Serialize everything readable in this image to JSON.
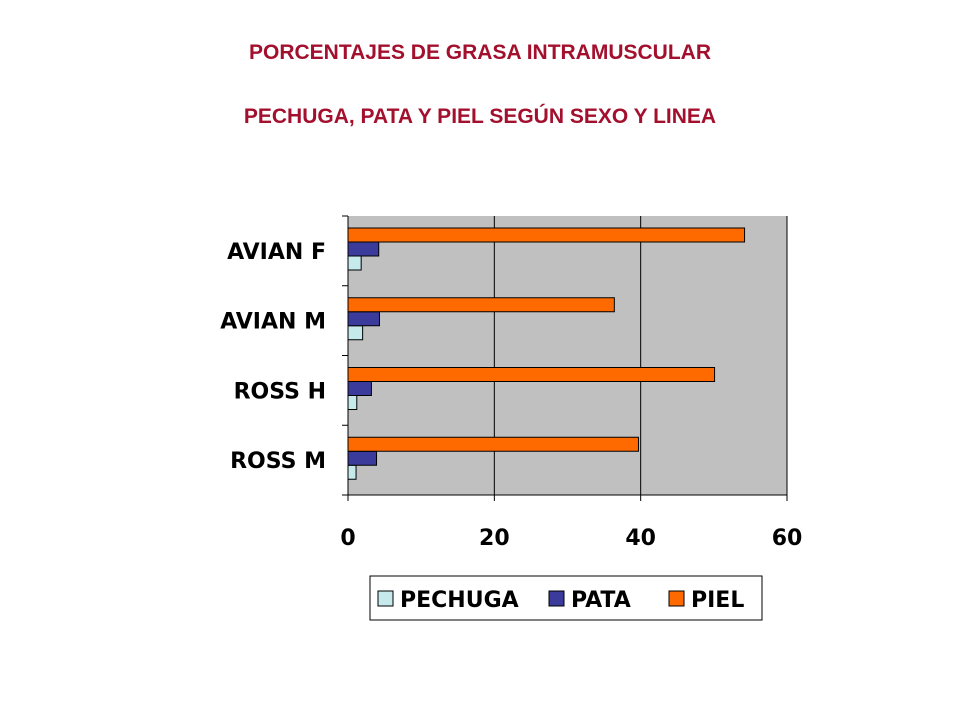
{
  "chart_data": {
    "type": "bar",
    "orientation": "horizontal",
    "title": "PORCENTAJES DE GRASA INTRAMUSCULAR",
    "subtitle": "PECHUGA, PATA Y PIEL SEGÚN SEXO Y LINEA",
    "categories": [
      "AVIAN F",
      "AVIAN M",
      "ROSS H",
      "ROSS M"
    ],
    "series": [
      {
        "name": "PECHUGA",
        "color": "#c6e9ec",
        "values": [
          1.8,
          2.0,
          1.2,
          1.1
        ]
      },
      {
        "name": "PATA",
        "color": "#3b3b9b",
        "values": [
          4.2,
          4.3,
          3.2,
          3.9
        ]
      },
      {
        "name": "PIEL",
        "color": "#ff6a00",
        "values": [
          54.2,
          36.4,
          50.1,
          39.7
        ]
      }
    ],
    "xlim": [
      0,
      60
    ],
    "xticks": [
      "0",
      "20",
      "40",
      "60"
    ],
    "grid": true,
    "plot_background": "#c0c0c0",
    "legend_position": "bottom"
  }
}
